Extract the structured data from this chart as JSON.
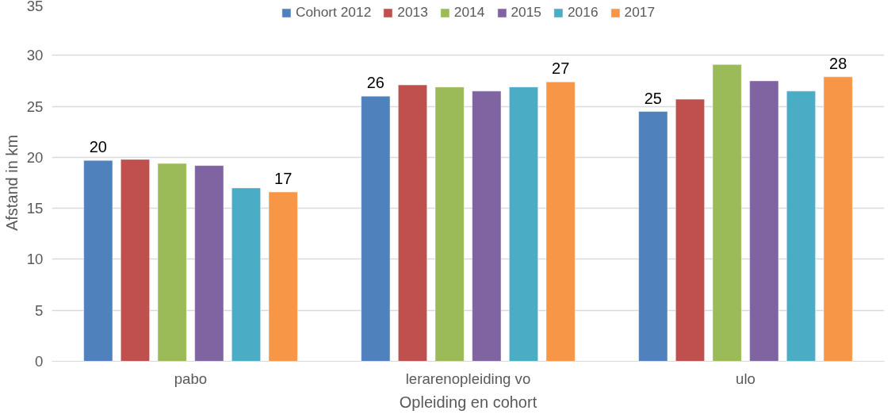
{
  "chart_data": {
    "type": "bar",
    "xlabel": "Opleiding en cohort",
    "ylabel": "Afstand in km",
    "categories": [
      "pabo",
      "lerarenopleiding vo",
      "ulo"
    ],
    "series": [
      {
        "name": "Cohort 2012",
        "color": "#4f81bd",
        "values": [
          19.7,
          26.0,
          24.5
        ],
        "value_labels": [
          "20",
          "26",
          "25"
        ]
      },
      {
        "name": "2013",
        "color": "#c0504d",
        "values": [
          19.8,
          27.1,
          25.7
        ]
      },
      {
        "name": "2014",
        "color": "#9bbb59",
        "values": [
          19.4,
          26.9,
          29.1
        ]
      },
      {
        "name": "2015",
        "color": "#8064a2",
        "values": [
          19.2,
          26.5,
          27.5
        ]
      },
      {
        "name": "2016",
        "color": "#4bacc6",
        "values": [
          17.0,
          26.9,
          26.5
        ]
      },
      {
        "name": "2017",
        "color": "#f79646",
        "values": [
          16.6,
          27.4,
          27.9
        ],
        "value_labels": [
          "17",
          "27",
          "28"
        ]
      }
    ],
    "ylim": [
      0,
      35
    ],
    "yticks": [
      0,
      5,
      10,
      15,
      20,
      25,
      30,
      35
    ],
    "grid": "y",
    "legend": "top"
  }
}
